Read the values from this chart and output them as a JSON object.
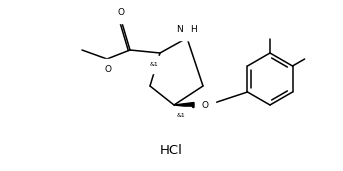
{
  "background_color": "#ffffff",
  "line_color": "#000000",
  "line_width": 1.2,
  "font_size": 6.5,
  "hcl_font_size": 9,
  "title": "HCl",
  "stereo1": "&1",
  "stereo2": "&1",
  "nh_label": "H",
  "o_label": "O",
  "nh_label2": "NH"
}
